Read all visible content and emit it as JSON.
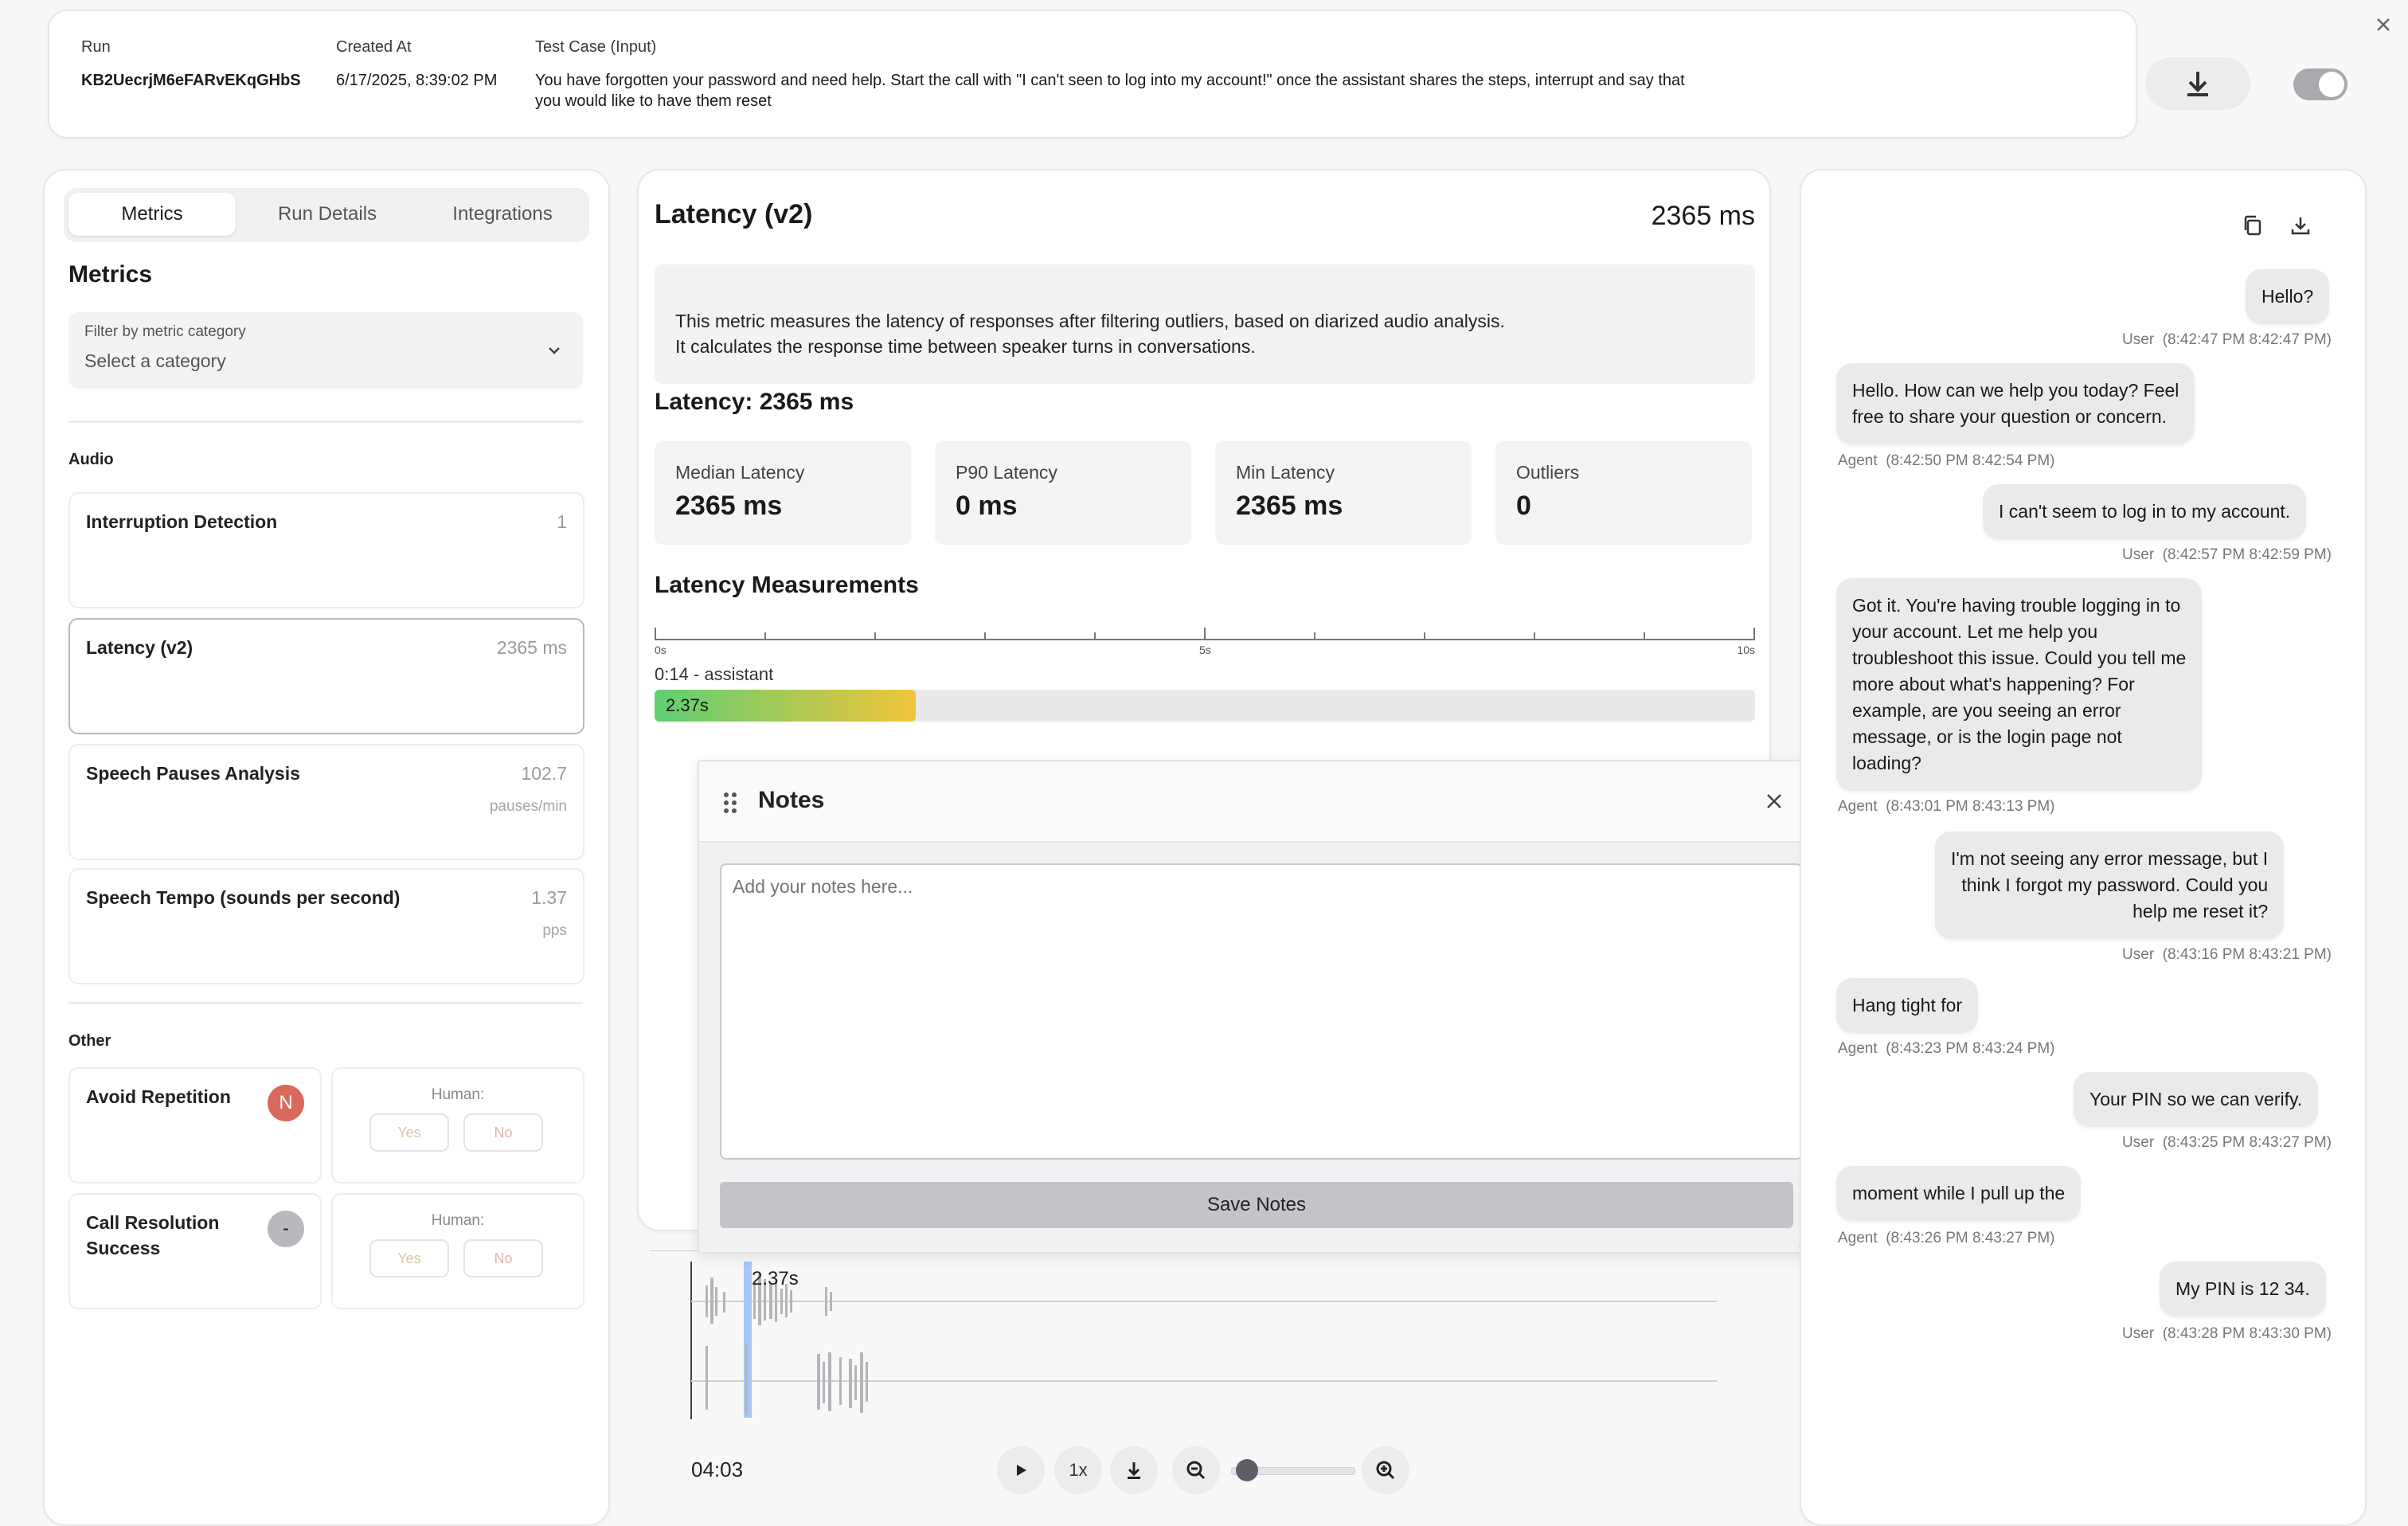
{
  "header": {
    "run_label": "Run",
    "run_value": "KB2UecrjM6eFARvEKqGHbS",
    "created_label": "Created At",
    "created_value": "6/17/2025, 8:39:02 PM",
    "testcase_label": "Test Case (Input)",
    "testcase_line1": "You have forgotten your password and need help. Start the call with \"I can't seen to log into my account!\" once the assistant shares the steps, interrupt and say that",
    "testcase_line2": "you would like to have them reset"
  },
  "close_icon": "close-icon",
  "tabs": [
    "Metrics",
    "Run Details",
    "Integrations"
  ],
  "metrics": {
    "title": "Metrics",
    "filter_label": "Filter by metric category",
    "filter_placeholder": "Select a category",
    "audio_title": "Audio",
    "audio": [
      {
        "name": "Interruption Detection",
        "value": "1",
        "unit": ""
      },
      {
        "name": "Latency (v2)",
        "value": "2365 ms",
        "unit": ""
      },
      {
        "name": "Speech Pauses Analysis",
        "value": "102.7",
        "unit": "pauses/min"
      },
      {
        "name": "Speech Tempo (sounds per second)",
        "value": "1.37",
        "unit": "pps"
      }
    ],
    "other_title": "Other",
    "other": [
      {
        "name": "Avoid Repetition",
        "badge": "N",
        "human_label": "Human:",
        "yes": "Yes",
        "no": "No"
      },
      {
        "name_line1": "Call Resolution",
        "name_line2": "Success",
        "badge": "-",
        "human_label": "Human:",
        "yes": "Yes",
        "no": "No"
      }
    ]
  },
  "detail": {
    "title": "Latency (v2)",
    "value": "2365 ms",
    "desc_line1": "This metric measures the latency of responses after filtering outliers, based on diarized audio analysis.",
    "desc_line2": "It calculates the response time between speaker turns in conversations.",
    "summary": "Latency: 2365 ms",
    "stats": [
      {
        "label": "Median Latency",
        "value": "2365 ms"
      },
      {
        "label": "P90 Latency",
        "value": "0 ms"
      },
      {
        "label": "Min Latency",
        "value": "2365 ms"
      },
      {
        "label": "Outliers",
        "value": "0"
      }
    ],
    "measurements_title": "Latency Measurements",
    "ticks": [
      "0s",
      "5s",
      "10s"
    ],
    "measure_label": "0:14 - assistant",
    "measure_value": "2.37s",
    "measure_fraction": 0.237
  },
  "notes": {
    "title": "Notes",
    "placeholder": "Add your notes here...",
    "save": "Save Notes"
  },
  "player": {
    "marker": "2.37s",
    "time": "04:03",
    "speed": "1x",
    "zoom_level": 0.05
  },
  "chat": [
    {
      "role": "user",
      "lines": [
        "Hello?"
      ],
      "meta_role": "User",
      "meta_time": "(8:42:47 PM 8:42:47 PM)"
    },
    {
      "role": "agent",
      "lines": [
        "Hello. How can we help you today? Feel",
        "free to share your question or concern."
      ],
      "meta_role": "Agent",
      "meta_time": "(8:42:50 PM 8:42:54 PM)"
    },
    {
      "role": "user",
      "lines": [
        "I can't seem to log in to my account."
      ],
      "meta_role": "User",
      "meta_time": "(8:42:57 PM 8:42:59 PM)"
    },
    {
      "role": "agent",
      "lines": [
        "Got it. You're having trouble logging in to",
        "your account. Let me help you",
        "troubleshoot this issue. Could you tell me",
        "more about what's happening? For",
        "example, are you seeing an error",
        "message, or is the login page not",
        "loading?"
      ],
      "meta_role": "Agent",
      "meta_time": "(8:43:01 PM 8:43:13 PM)"
    },
    {
      "role": "user",
      "lines": [
        "I'm not seeing any error message, but I",
        "think I forgot my password. Could you",
        "help me reset it?"
      ],
      "meta_role": "User",
      "meta_time": "(8:43:16 PM 8:43:21 PM)"
    },
    {
      "role": "agent",
      "lines": [
        "Hang tight for"
      ],
      "meta_role": "Agent",
      "meta_time": "(8:43:23 PM 8:43:24 PM)"
    },
    {
      "role": "user",
      "lines": [
        "Your PIN so we can verify."
      ],
      "meta_role": "User",
      "meta_time": "(8:43:25 PM 8:43:27 PM)"
    },
    {
      "role": "agent",
      "lines": [
        "moment while I pull up the"
      ],
      "meta_role": "Agent",
      "meta_time": "(8:43:26 PM 8:43:27 PM)"
    },
    {
      "role": "user",
      "lines": [
        "My PIN is 12 34."
      ],
      "meta_role": "User",
      "meta_time": "(8:43:28 PM 8:43:30 PM)"
    }
  ]
}
